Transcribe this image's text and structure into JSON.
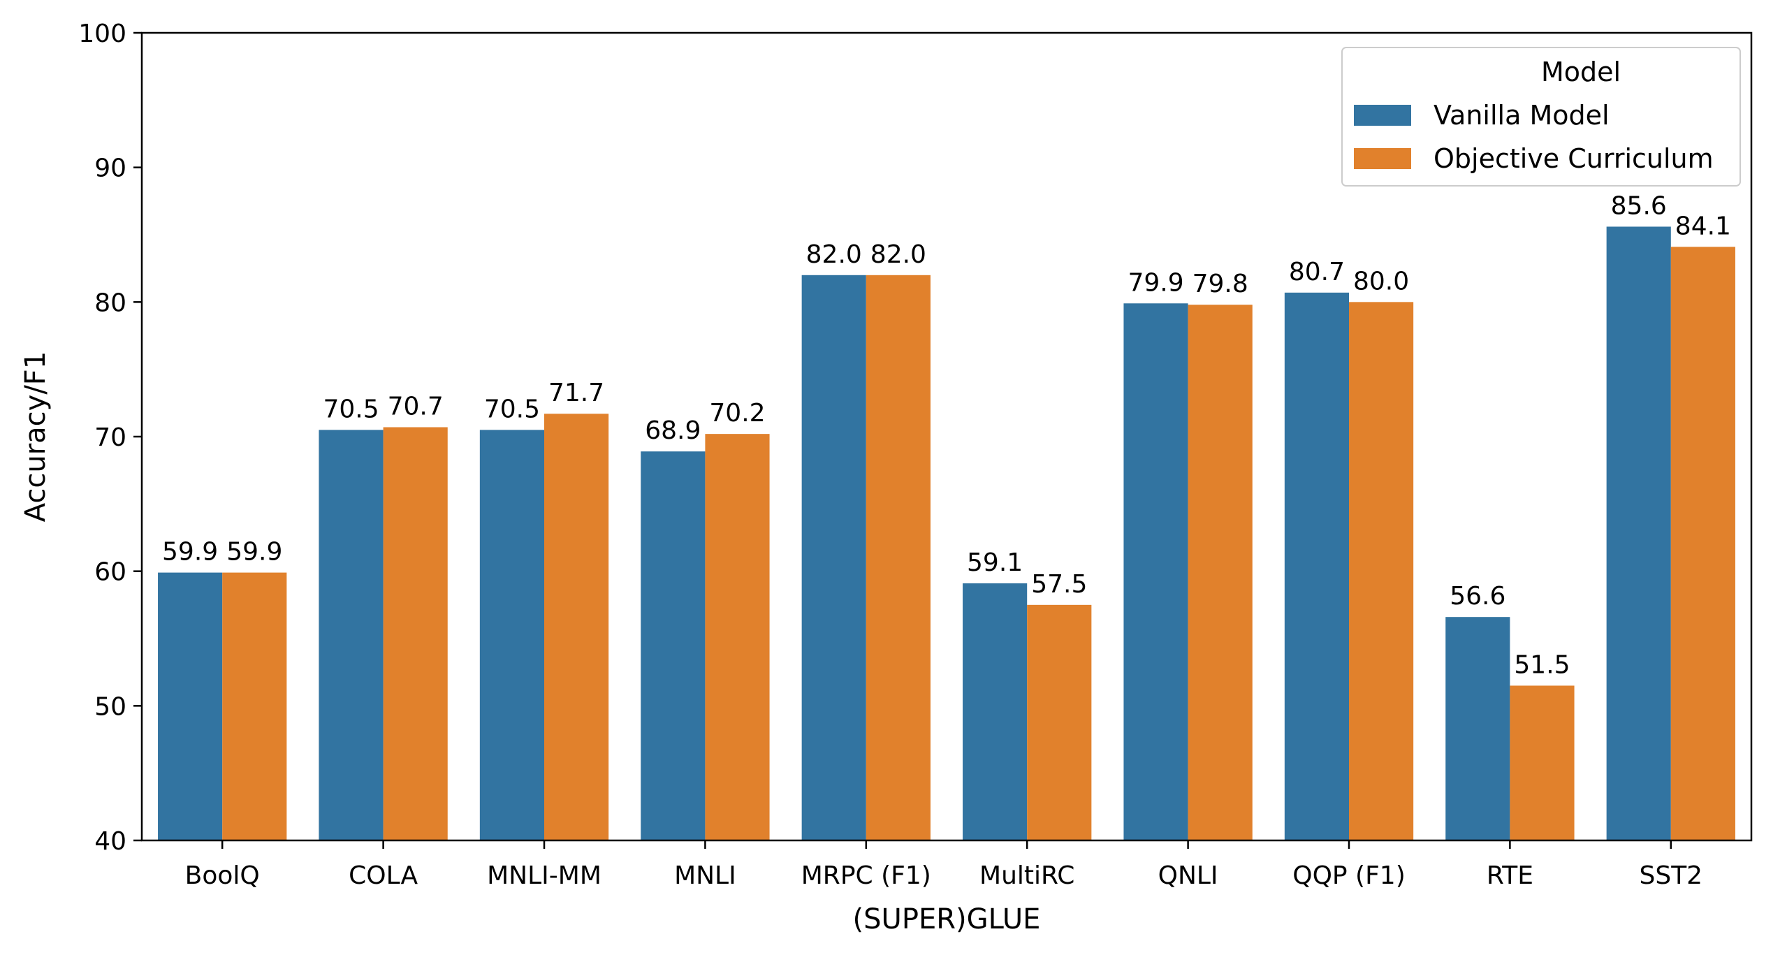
{
  "chart_data": {
    "type": "bar",
    "xlabel": "(SUPER)GLUE",
    "ylabel": "Accuracy/F1",
    "ylim": [
      40,
      100
    ],
    "yticks": [
      40,
      50,
      60,
      70,
      80,
      90,
      100
    ],
    "grid": false,
    "legend": {
      "title": "Model",
      "placement": "top-right"
    },
    "categories": [
      "BoolQ",
      "COLA",
      "MNLI-MM",
      "MNLI",
      "MRPC (F1)",
      "MultiRC",
      "QNLI",
      "QQP (F1)",
      "RTE",
      "SST2"
    ],
    "series": [
      {
        "name": "Vanilla Model",
        "color": "#3274a1",
        "values": [
          59.9,
          70.5,
          70.5,
          68.9,
          82.0,
          59.1,
          79.9,
          80.7,
          56.6,
          85.6
        ],
        "labels": [
          "59.9",
          "70.5",
          "70.5",
          "68.9",
          "82.0",
          "59.1",
          "79.9",
          "80.7",
          "56.6",
          "85.6"
        ]
      },
      {
        "name": "Objective Curriculum",
        "color": "#e1812c",
        "values": [
          59.9,
          70.7,
          71.7,
          70.2,
          82.0,
          57.5,
          79.8,
          80.0,
          51.5,
          84.1
        ],
        "labels": [
          "59.9",
          "70.7",
          "71.7",
          "70.2",
          "82.0",
          "57.5",
          "79.8",
          "80.0",
          "51.5",
          "84.1"
        ]
      }
    ]
  }
}
